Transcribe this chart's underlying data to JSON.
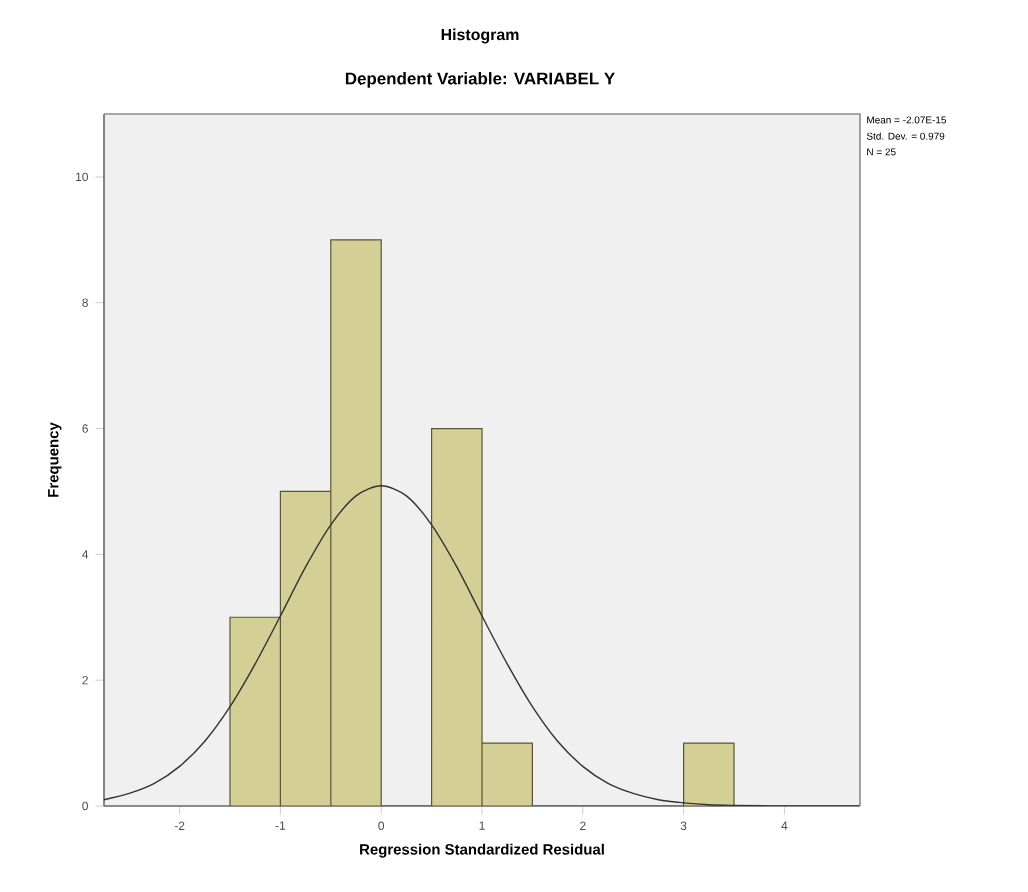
{
  "chart_data": {
    "type": "histogram",
    "title": "Histogram",
    "subtitle": "Dependent Variable: VARIABEL Y",
    "xlabel": "Regression Standardized Residual",
    "ylabel": "Frequency",
    "series": [
      {
        "color": "#d4cf95",
        "bins": [
          -1.5,
          -1.0,
          -0.5,
          0.0,
          0.5,
          1.0,
          1.5,
          2.0,
          2.5,
          3.0,
          3.5
        ],
        "values": [
          3,
          5,
          9,
          0,
          6,
          1,
          0,
          0,
          0,
          1
        ]
      },
      {
        "type": "line",
        "color": "#333333",
        "x": [
          -2.75,
          -2.5,
          -2.25,
          -2,
          -1.75,
          -1.5,
          -1.25,
          -1,
          -0.75,
          -0.5,
          -0.25,
          0,
          0.25,
          0.5,
          0.75,
          1,
          1.25,
          1.5,
          1.75,
          2,
          2.25,
          2.5,
          2.75,
          3,
          3.25,
          3.5,
          4,
          4.75
        ],
        "values": [
          0.1,
          0.2,
          0.36,
          0.63,
          1.03,
          1.58,
          2.26,
          3.02,
          3.8,
          4.47,
          4.93,
          5.09,
          4.93,
          4.47,
          3.8,
          3.02,
          2.26,
          1.58,
          1.03,
          0.63,
          0.36,
          0.2,
          0.1,
          0.05,
          0.02,
          0.01,
          0.0,
          0.0
        ]
      }
    ],
    "xlim": [
      -2.75,
      4.75
    ],
    "ylim": [
      0,
      11
    ],
    "xticks": [
      -2,
      -1,
      0,
      1,
      2,
      3,
      4
    ],
    "yticks": [
      0,
      2,
      4,
      6,
      8,
      10
    ],
    "annotations": [
      "Mean = -2.07E-15",
      "Std. Dev. = 0.979",
      "N = 25"
    ]
  }
}
